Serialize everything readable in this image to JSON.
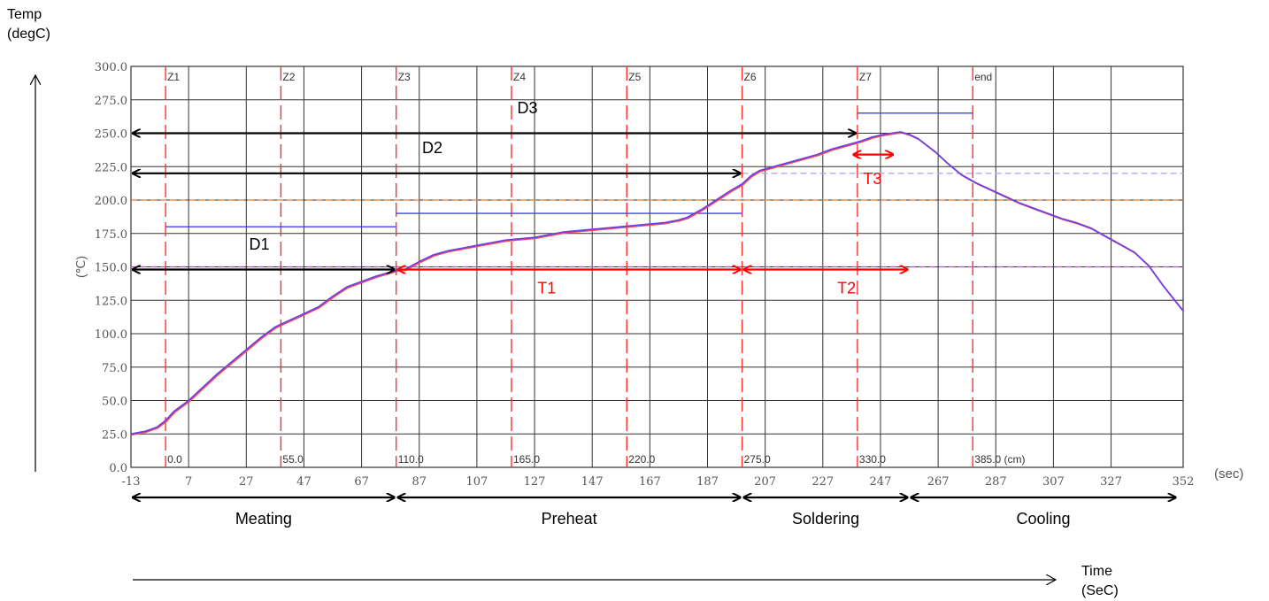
{
  "chart_data": {
    "type": "line",
    "xlabel": "(sec)",
    "ylabel": "(℃)",
    "xlim": [
      -13,
      352
    ],
    "ylim": [
      0,
      300
    ],
    "x_ticks": [
      "-13",
      "7",
      "27",
      "47",
      "67",
      "87",
      "107",
      "127",
      "147",
      "167",
      "187",
      "207",
      "227",
      "247",
      "267",
      "287",
      "307",
      "327",
      "352"
    ],
    "x_tick_values": [
      -13,
      7,
      27,
      47,
      67,
      87,
      107,
      127,
      147,
      167,
      187,
      207,
      227,
      247,
      267,
      287,
      307,
      327,
      352
    ],
    "y_ticks": [
      "0.0",
      "25.0",
      "50.0",
      "75.0",
      "100.0",
      "125.0",
      "150.0",
      "175.0",
      "200.0",
      "225.0",
      "250.0",
      "275.0",
      "300.0"
    ],
    "y_tick_values": [
      0,
      25,
      50,
      75,
      100,
      125,
      150,
      175,
      200,
      225,
      250,
      275,
      300
    ],
    "grid": true,
    "zones": [
      {
        "label": "Z1",
        "x": -1,
        "pos_label": "0.0"
      },
      {
        "label": "Z2",
        "x": 39,
        "pos_label": "55.0"
      },
      {
        "label": "Z3",
        "x": 79,
        "pos_label": "110.0"
      },
      {
        "label": "Z4",
        "x": 119,
        "pos_label": "165.0"
      },
      {
        "label": "Z5",
        "x": 159,
        "pos_label": "220.0"
      },
      {
        "label": "Z6",
        "x": 199,
        "pos_label": "275.0"
      },
      {
        "label": "Z7",
        "x": 239,
        "pos_label": "330.0"
      },
      {
        "label": "end",
        "x": 279,
        "pos_label": "385.0 (cm)"
      }
    ],
    "setpoints": [
      {
        "x1": -1,
        "x2": 79,
        "y": 180
      },
      {
        "x1": 79,
        "x2": 199,
        "y": 190
      },
      {
        "x1": 239,
        "x2": 279,
        "y": 265
      }
    ],
    "reference_lines": [
      {
        "y": 200,
        "color": "#e07a30",
        "style": "dashed",
        "x1": -13,
        "x2": 352
      },
      {
        "y": 150,
        "color": "#9a5ab5",
        "style": "dashed",
        "x1": -13,
        "x2": 352
      },
      {
        "y": 220,
        "color": "#b0a8f0",
        "style": "dashed",
        "x1": 199,
        "x2": 352
      }
    ],
    "series": [
      {
        "color": "#7040e0",
        "x": [
          -13,
          -8,
          -4,
          -1,
          2,
          7,
          12,
          17,
          22,
          27,
          32,
          37,
          40,
          43,
          47,
          52,
          57,
          62,
          67,
          72,
          77,
          80,
          82,
          87,
          92,
          97,
          102,
          107,
          112,
          117,
          122,
          127,
          132,
          137,
          142,
          147,
          152,
          157,
          162,
          167,
          172,
          177,
          180,
          185,
          190,
          195,
          199,
          202,
          205,
          210,
          215,
          220,
          225,
          230,
          235,
          240,
          244,
          248,
          251,
          254,
          257,
          260,
          263,
          266,
          270,
          275,
          280,
          285,
          290,
          295,
          300,
          305,
          310,
          315,
          320,
          325,
          330,
          335,
          340,
          345,
          352
        ],
        "y": [
          25,
          27,
          30,
          35,
          42,
          50,
          60,
          70,
          79,
          88,
          97,
          105,
          108,
          111,
          115,
          120,
          128,
          135,
          139,
          143,
          146,
          148,
          148,
          154,
          159,
          162,
          164,
          166,
          168,
          170,
          171,
          172,
          174,
          176,
          177,
          178,
          179,
          180,
          181,
          182,
          183,
          185,
          187,
          193,
          200,
          207,
          212,
          218,
          222,
          225,
          228,
          231,
          234,
          238,
          241,
          244,
          247,
          249,
          250,
          251,
          249,
          246,
          241,
          236,
          228,
          219,
          213,
          208,
          203,
          198,
          194,
          190,
          186,
          183,
          179,
          173,
          167,
          161,
          151,
          136,
          117
        ]
      }
    ],
    "annotations": [
      {
        "text": "D1",
        "color": "#000000",
        "x1": -13,
        "x2": 79,
        "y": 148,
        "label_x": 28,
        "label_y": 163
      },
      {
        "text": "D2",
        "color": "#000000",
        "x1": -13,
        "x2": 199,
        "y": 220,
        "label_x": 88,
        "label_y": 235
      },
      {
        "text": "D3",
        "color": "#000000",
        "x1": -13,
        "x2": 239,
        "y": 250,
        "label_x": 121,
        "label_y": 265
      },
      {
        "text": "T1",
        "color": "#ff0000",
        "x1": 79,
        "x2": 199,
        "y": 148,
        "label_x": 128,
        "label_y": 130
      },
      {
        "text": "T2",
        "color": "#ff0000",
        "x1": 199,
        "x2": 257,
        "y": 148,
        "label_x": 232,
        "label_y": 130
      },
      {
        "text": "T3",
        "color": "#ff0000",
        "x1": 237,
        "x2": 252,
        "y": 234,
        "label_x": 241,
        "label_y": 212
      }
    ],
    "phases": [
      {
        "label": "Meating",
        "x1": -13,
        "x2": 79
      },
      {
        "label": "Preheat",
        "x1": 79,
        "x2": 199
      },
      {
        "label": "Soldering",
        "x1": 199,
        "x2": 257
      },
      {
        "label": "Cooling",
        "x1": 257,
        "x2": 350
      }
    ]
  },
  "outer_labels": {
    "temp_axis": "Temp\n(degC)",
    "time_axis": "Time\n(SeC)"
  },
  "colors": {
    "grid": "#333333",
    "zone_line": "#ff3030",
    "setpoint": "#4040ff",
    "profile": "#7040e0",
    "annotation_red": "#ff0000"
  }
}
